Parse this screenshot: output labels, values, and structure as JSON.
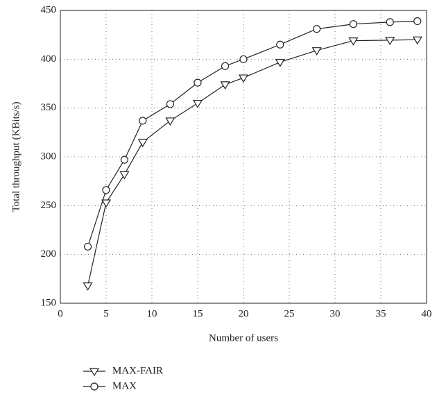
{
  "chart_data": {
    "type": "line",
    "xlabel": "Number of users",
    "ylabel": "Total throughput (KBits/s)",
    "x": [
      3,
      5,
      7,
      9,
      12,
      15,
      18,
      20,
      24,
      28,
      32,
      36,
      39
    ],
    "series": [
      {
        "name": "MAX-FAIR",
        "color": "#222222",
        "marker": "triangle-down",
        "values": [
          168,
          253,
          282,
          315,
          337,
          355,
          374,
          381,
          397,
          409,
          419,
          419.5,
          420
        ]
      },
      {
        "name": "MAX",
        "color": "#222222",
        "marker": "circle",
        "values": [
          208,
          266,
          297,
          337,
          354,
          376,
          393,
          400,
          415,
          431,
          436,
          438,
          439
        ]
      }
    ],
    "xlim": [
      0,
      40
    ],
    "xticks": [
      0,
      5,
      10,
      15,
      20,
      25,
      30,
      35,
      40
    ],
    "ylim": [
      150,
      450
    ],
    "yticks": [
      150,
      200,
      250,
      300,
      350,
      400,
      450
    ],
    "grid": true,
    "legend": "below"
  }
}
